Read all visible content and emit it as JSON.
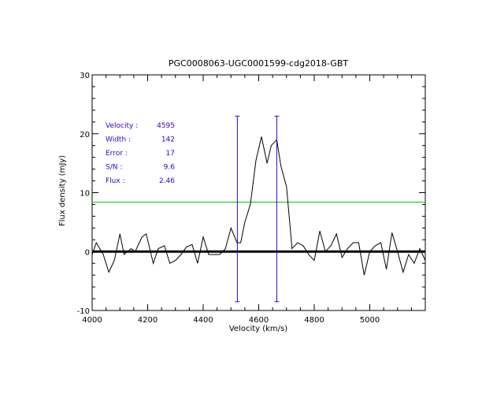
{
  "chart_data": {
    "type": "line",
    "title": "PGC0008063-UGC0001599-cdg2018-GBT",
    "xlabel": "Velocity (km/s)",
    "ylabel": "Flux density (mJy)",
    "xlim": [
      4000,
      5200
    ],
    "ylim": [
      -10,
      30
    ],
    "x_ticks": [
      4000,
      4200,
      4400,
      4600,
      4800,
      5000
    ],
    "y_ticks": [
      -10,
      0,
      10,
      20,
      30
    ],
    "colors": {
      "spectrum": "#000000",
      "zero_line": "#000000",
      "threshold_line": "#00cc00",
      "markers": "#3300cc",
      "annotations": "#3300cc"
    },
    "series": [
      {
        "name": "spectrum",
        "x": [
          4000,
          4015,
          4040,
          4060,
          4080,
          4100,
          4115,
          4140,
          4155,
          4180,
          4195,
          4220,
          4238,
          4260,
          4280,
          4300,
          4320,
          4340,
          4360,
          4380,
          4400,
          4420,
          4440,
          4460,
          4480,
          4500,
          4522,
          4535,
          4550,
          4570,
          4590,
          4610,
          4630,
          4645,
          4665,
          4680,
          4700,
          4720,
          4740,
          4760,
          4780,
          4800,
          4820,
          4840,
          4860,
          4880,
          4900,
          4920,
          4940,
          4960,
          4980,
          5000,
          5020,
          5040,
          5060,
          5080,
          5100,
          5120,
          5140,
          5160,
          5180,
          5200
        ],
        "values": [
          -0.5,
          1.5,
          -0.5,
          -3.5,
          -1.5,
          3.0,
          -0.5,
          0.5,
          0.0,
          2.5,
          3.0,
          -2.0,
          0.5,
          1.0,
          -2.0,
          -1.5,
          -0.5,
          0.8,
          1.2,
          -2.0,
          2.5,
          -0.5,
          -0.5,
          -0.5,
          0.5,
          4.0,
          1.5,
          1.5,
          5.0,
          8.0,
          15.5,
          19.5,
          15.0,
          18.0,
          19.0,
          14.5,
          11.0,
          0.5,
          1.5,
          1.0,
          -0.5,
          -1.5,
          3.5,
          0.0,
          1.0,
          3.0,
          -1.0,
          0.5,
          1.5,
          1.5,
          -4.0,
          0.0,
          1.0,
          1.5,
          -3.0,
          3.2,
          0.0,
          -3.5,
          -0.5,
          -2.0,
          0.5,
          -1.5
        ]
      }
    ],
    "zero_line": 0,
    "threshold_line": 8.4,
    "marker_velocities": [
      4523,
      4665
    ],
    "marker_range": [
      -8.5,
      23
    ],
    "annotations": [
      {
        "label": "Velocity :",
        "value": "4595"
      },
      {
        "label": "Width :",
        "value": "142"
      },
      {
        "label": "Error :",
        "value": "17"
      },
      {
        "label": "S/N :",
        "value": "9.6"
      },
      {
        "label": "Flux :",
        "value": "2.46"
      }
    ]
  }
}
